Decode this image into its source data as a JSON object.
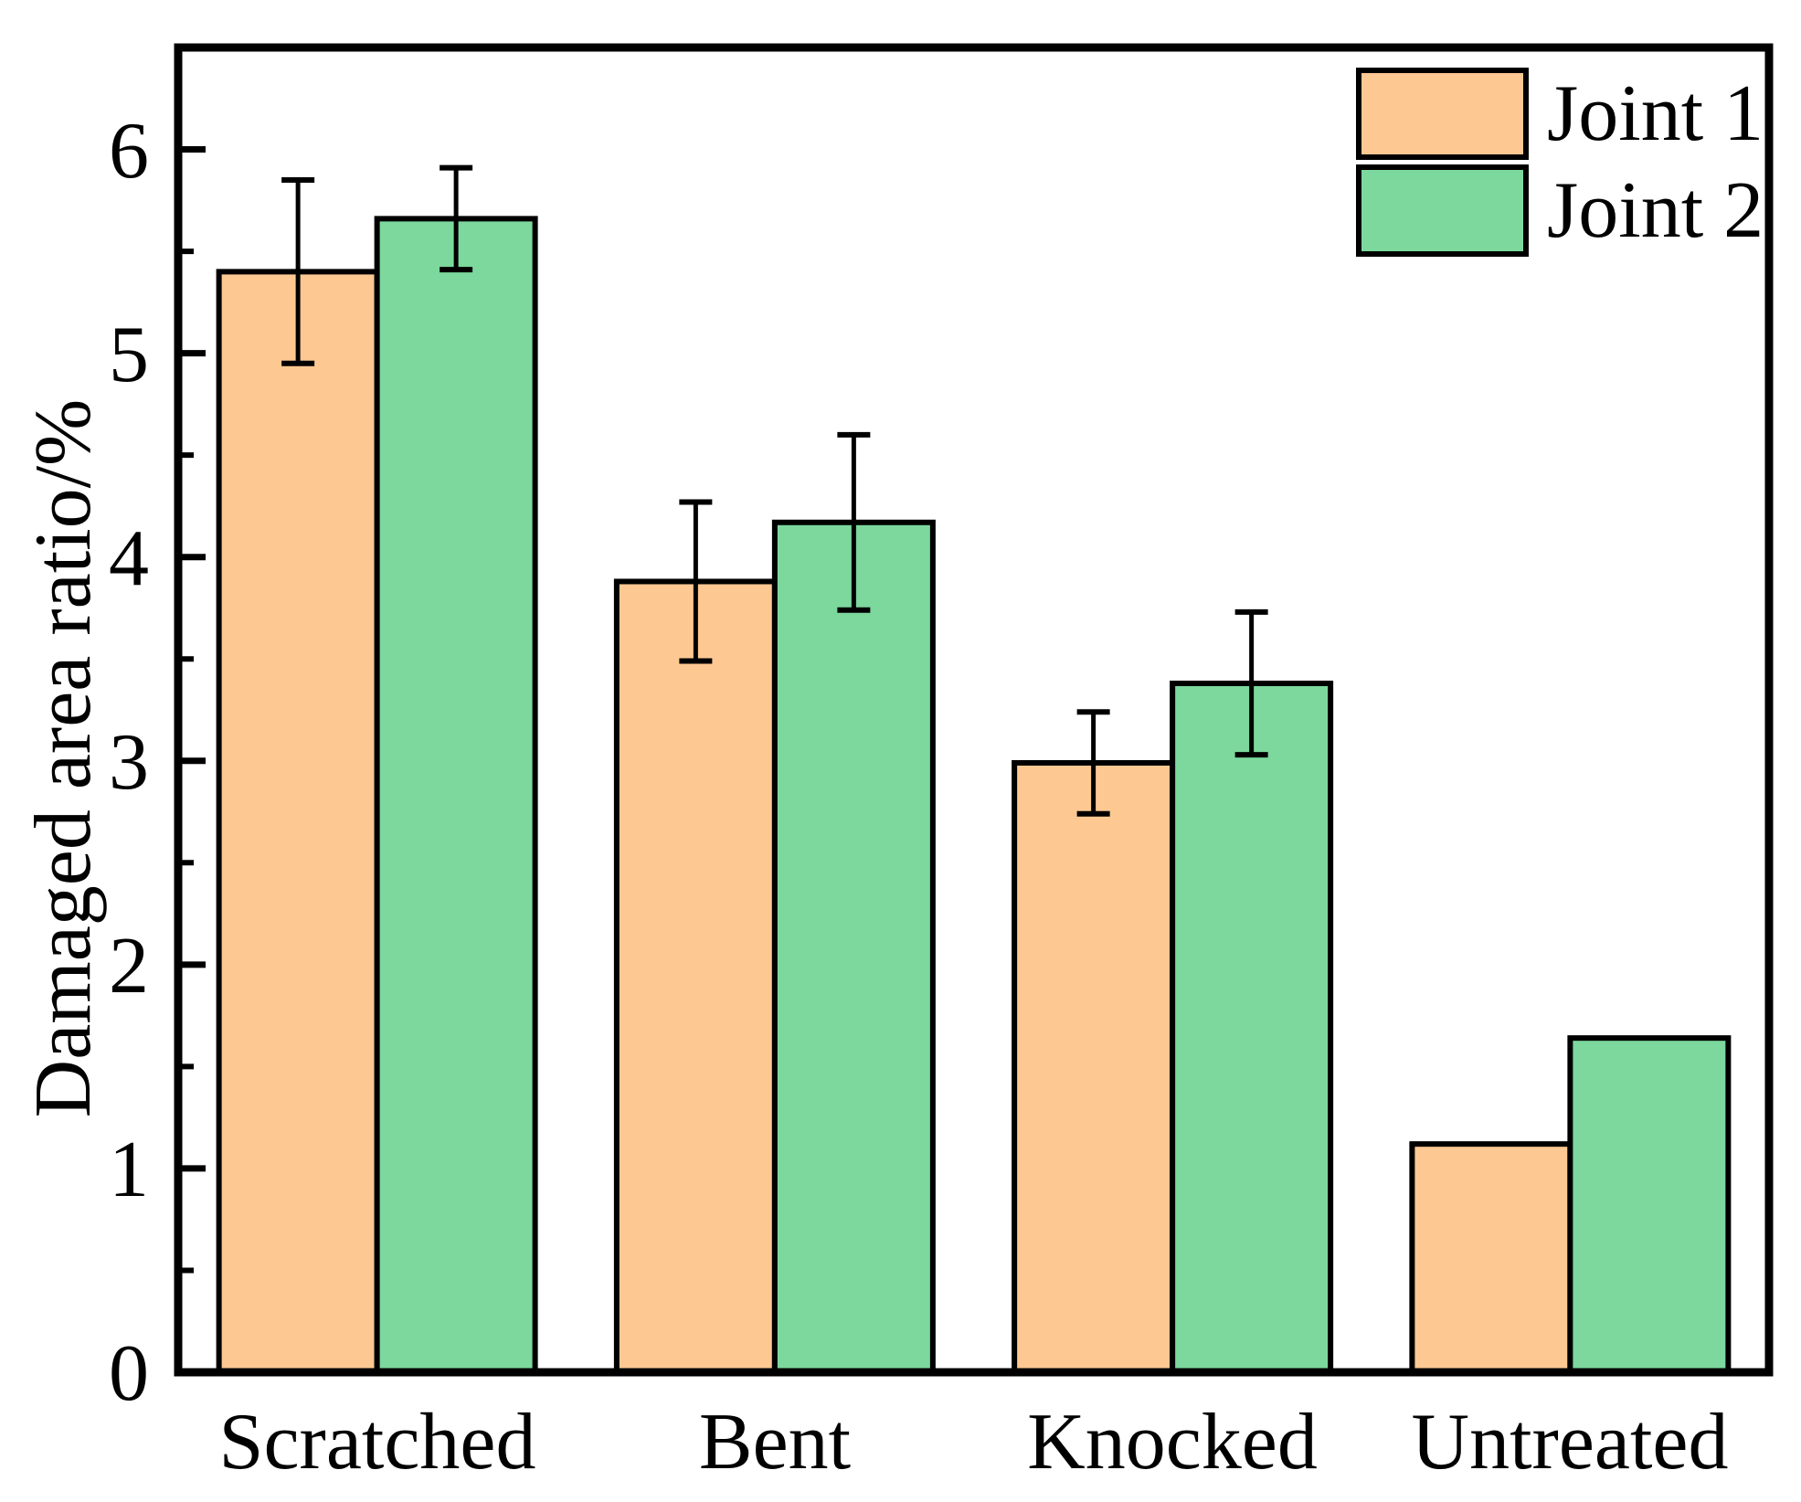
{
  "figure": {
    "background": "#FFFFFF",
    "frame_color": "#000000"
  },
  "chart_data": {
    "type": "bar",
    "title": "",
    "categories": [
      "Scratched",
      "Bent",
      "Knocked",
      "Untreated"
    ],
    "series": [
      {
        "name": "Joint 1",
        "color": "#FDC892",
        "edge_color": "#000000",
        "values": [
          5.4,
          3.88,
          2.99,
          1.12
        ],
        "errors": [
          0.45,
          0.39,
          0.25,
          null
        ]
      },
      {
        "name": "Joint 2",
        "color": "#7CD89D",
        "edge_color": "#000000",
        "values": [
          5.66,
          4.17,
          3.38,
          1.64
        ],
        "errors": [
          0.25,
          0.43,
          0.35,
          null
        ]
      }
    ],
    "xlabel": "",
    "ylabel": "Damaged area ratio/%",
    "ylim": [
      0,
      6.5
    ],
    "yticks": [
      0,
      1,
      2,
      3,
      4,
      5,
      6
    ],
    "minor_tick_step": 0.5,
    "grid": false,
    "error_bar_color": "#000000",
    "legend": {
      "position": "top-right",
      "border": false,
      "entries": [
        "Joint 1",
        "Joint 2"
      ]
    }
  }
}
